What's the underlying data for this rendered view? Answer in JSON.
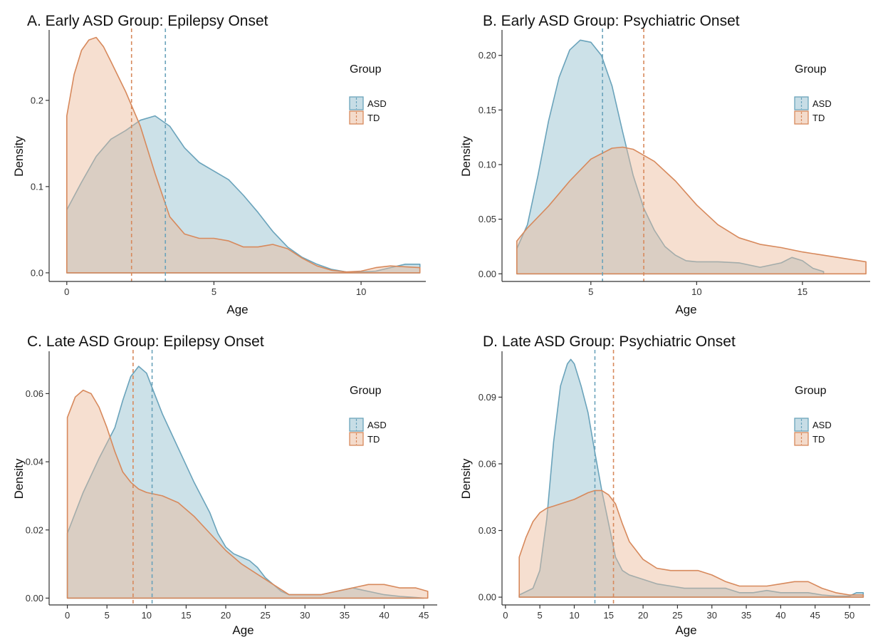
{
  "colors": {
    "asd_fill": "#8fbccd",
    "asd_line": "#6aa3bb",
    "td_fill": "#eab797",
    "td_line": "#d7895c",
    "axis": "#333333"
  },
  "chart_data": [
    {
      "type": "area",
      "panel": "A",
      "title": "A. Early ASD Group: Epilepsy Onset",
      "xlabel": "Age",
      "ylabel": "Density",
      "xlim": [
        -0.6,
        12.2
      ],
      "ylim": [
        -0.01,
        0.28
      ],
      "xticks": [
        0,
        5,
        10
      ],
      "yticks": [
        0.0,
        0.1,
        0.2
      ],
      "ytick_labels": [
        "0.0",
        "0.1",
        "0.2"
      ],
      "grid": false,
      "legend": {
        "title": "Group",
        "position": "right",
        "entries": [
          "ASD",
          "TD"
        ]
      },
      "series": [
        {
          "name": "ASD",
          "mean": 3.35,
          "x": [
            0,
            0.5,
            1,
            1.5,
            2,
            2.5,
            3,
            3.5,
            4,
            4.5,
            5,
            5.5,
            6,
            6.5,
            7,
            7.5,
            8,
            8.5,
            9,
            9.5,
            10,
            10.5,
            11,
            11.5,
            12
          ],
          "y": [
            0.073,
            0.105,
            0.135,
            0.155,
            0.165,
            0.177,
            0.182,
            0.17,
            0.145,
            0.128,
            0.118,
            0.108,
            0.09,
            0.07,
            0.048,
            0.03,
            0.018,
            0.01,
            0.004,
            0.001,
            0.001,
            0.002,
            0.006,
            0.01,
            0.01
          ]
        },
        {
          "name": "TD",
          "mean": 2.2,
          "x": [
            0,
            0.25,
            0.5,
            0.75,
            1,
            1.25,
            1.5,
            2,
            2.5,
            3,
            3.5,
            4,
            4.5,
            5,
            5.5,
            6,
            6.5,
            7,
            7.5,
            8,
            8.5,
            9,
            9.5,
            10,
            10.5,
            11,
            11.5,
            12
          ],
          "y": [
            0.182,
            0.23,
            0.258,
            0.27,
            0.273,
            0.262,
            0.245,
            0.21,
            0.17,
            0.115,
            0.065,
            0.045,
            0.04,
            0.04,
            0.037,
            0.03,
            0.03,
            0.033,
            0.028,
            0.017,
            0.008,
            0.003,
            0.001,
            0.002,
            0.006,
            0.008,
            0.007,
            0.006
          ]
        }
      ]
    },
    {
      "type": "area",
      "panel": "B",
      "title": "B. Early ASD Group: Psychiatric Onset",
      "xlabel": "Age",
      "ylabel": "Density",
      "xlim": [
        0.8,
        18.2
      ],
      "ylim": [
        -0.007,
        0.222
      ],
      "xticks": [
        5,
        10,
        15
      ],
      "yticks": [
        0.0,
        0.05,
        0.1,
        0.15,
        0.2
      ],
      "ytick_labels": [
        "0.00",
        "0.05",
        "0.10",
        "0.15",
        "0.20"
      ],
      "grid": false,
      "legend": {
        "title": "Group",
        "position": "right",
        "entries": [
          "ASD",
          "TD"
        ]
      },
      "series": [
        {
          "name": "ASD",
          "mean": 5.55,
          "x": [
            1.5,
            2,
            2.5,
            3,
            3.5,
            4,
            4.5,
            5,
            5.5,
            6,
            6.5,
            7,
            7.5,
            8,
            8.5,
            9,
            9.5,
            10,
            11,
            12,
            13,
            14,
            14.5,
            15,
            15.5,
            16
          ],
          "y": [
            0.023,
            0.045,
            0.09,
            0.14,
            0.18,
            0.205,
            0.214,
            0.212,
            0.2,
            0.172,
            0.13,
            0.09,
            0.06,
            0.04,
            0.025,
            0.017,
            0.012,
            0.011,
            0.011,
            0.01,
            0.006,
            0.01,
            0.015,
            0.012,
            0.005,
            0.002
          ]
        },
        {
          "name": "TD",
          "mean": 7.5,
          "x": [
            1.5,
            2,
            3,
            4,
            5,
            6,
            6.5,
            7,
            8,
            9,
            10,
            11,
            12,
            13,
            14,
            15,
            16,
            17,
            18
          ],
          "y": [
            0.03,
            0.042,
            0.062,
            0.085,
            0.105,
            0.115,
            0.116,
            0.114,
            0.103,
            0.085,
            0.063,
            0.045,
            0.033,
            0.027,
            0.024,
            0.02,
            0.017,
            0.014,
            0.011
          ]
        }
      ]
    },
    {
      "type": "area",
      "panel": "C",
      "title": "C. Late ASD Group: Epilepsy Onset",
      "xlabel": "Age",
      "ylabel": "Density",
      "xlim": [
        -2.3,
        46.7
      ],
      "ylim": [
        -0.002,
        0.072
      ],
      "xticks": [
        0,
        5,
        10,
        15,
        20,
        25,
        30,
        35,
        40,
        45
      ],
      "yticks": [
        0.0,
        0.02,
        0.04,
        0.06
      ],
      "ytick_labels": [
        "0.00",
        "0.02",
        "0.04",
        "0.06"
      ],
      "grid": false,
      "legend": {
        "title": "Group",
        "position": "right",
        "entries": [
          "ASD",
          "TD"
        ]
      },
      "series": [
        {
          "name": "ASD",
          "mean": 10.7,
          "x": [
            0,
            2,
            4,
            6,
            7,
            8,
            9,
            10,
            11,
            12,
            13,
            14,
            16,
            18,
            19,
            20,
            21,
            22,
            23,
            24,
            25,
            26,
            27,
            28,
            29,
            30,
            32,
            34,
            36,
            38,
            40,
            42,
            44,
            45
          ],
          "y": [
            0.019,
            0.031,
            0.041,
            0.05,
            0.058,
            0.065,
            0.068,
            0.066,
            0.06,
            0.054,
            0.049,
            0.044,
            0.034,
            0.025,
            0.019,
            0.015,
            0.013,
            0.012,
            0.011,
            0.009,
            0.006,
            0.004,
            0.002,
            0.001,
            0.001,
            0.001,
            0.001,
            0.002,
            0.003,
            0.002,
            0.001,
            0.0005,
            0.0002,
            0.0
          ]
        },
        {
          "name": "TD",
          "mean": 8.3,
          "x": [
            0,
            1,
            2,
            3,
            4,
            5,
            6,
            7,
            8,
            9,
            10,
            12,
            14,
            16,
            18,
            20,
            22,
            24,
            26,
            28,
            30,
            32,
            34,
            36,
            38,
            40,
            42,
            44,
            45.5
          ],
          "y": [
            0.053,
            0.059,
            0.061,
            0.06,
            0.056,
            0.05,
            0.043,
            0.037,
            0.034,
            0.032,
            0.031,
            0.03,
            0.028,
            0.024,
            0.019,
            0.014,
            0.01,
            0.007,
            0.004,
            0.001,
            0.001,
            0.001,
            0.002,
            0.003,
            0.004,
            0.004,
            0.003,
            0.003,
            0.002
          ]
        }
      ]
    },
    {
      "type": "area",
      "panel": "D",
      "title": "D. Late ASD Group: Psychiatric Onset",
      "xlabel": "Age",
      "ylabel": "Density",
      "xlim": [
        -0.5,
        53
      ],
      "ylim": [
        -0.0035,
        0.11
      ],
      "xticks": [
        0,
        5,
        10,
        15,
        20,
        25,
        30,
        35,
        40,
        45,
        50
      ],
      "yticks": [
        0.0,
        0.03,
        0.06,
        0.09
      ],
      "ytick_labels": [
        "0.00",
        "0.03",
        "0.06",
        "0.09"
      ],
      "grid": false,
      "legend": {
        "title": "Group",
        "position": "right",
        "entries": [
          "ASD",
          "TD"
        ]
      },
      "series": [
        {
          "name": "ASD",
          "mean": 13.0,
          "x": [
            2,
            4,
            5,
            6,
            7,
            8,
            9,
            9.5,
            10,
            11,
            12,
            13,
            14,
            15,
            16,
            17,
            18,
            19,
            20,
            22,
            24,
            26,
            28,
            30,
            32,
            34,
            36,
            38,
            40,
            42,
            44,
            46,
            48,
            50,
            51,
            52
          ],
          "y": [
            0.001,
            0.004,
            0.012,
            0.035,
            0.07,
            0.095,
            0.105,
            0.107,
            0.105,
            0.095,
            0.083,
            0.065,
            0.048,
            0.033,
            0.018,
            0.012,
            0.01,
            0.009,
            0.008,
            0.006,
            0.005,
            0.004,
            0.004,
            0.004,
            0.004,
            0.002,
            0.002,
            0.003,
            0.002,
            0.002,
            0.002,
            0.001,
            0.0005,
            0.0005,
            0.002,
            0.002
          ]
        },
        {
          "name": "TD",
          "mean": 15.7,
          "x": [
            2,
            3,
            4,
            5,
            6,
            7,
            8,
            10,
            12,
            13,
            14,
            15,
            16,
            17,
            18,
            20,
            22,
            24,
            26,
            28,
            30,
            32,
            34,
            36,
            38,
            40,
            42,
            43,
            44,
            46,
            48,
            50,
            52
          ],
          "y": [
            0.018,
            0.027,
            0.034,
            0.038,
            0.04,
            0.041,
            0.042,
            0.044,
            0.047,
            0.048,
            0.048,
            0.046,
            0.042,
            0.033,
            0.025,
            0.017,
            0.013,
            0.012,
            0.012,
            0.012,
            0.01,
            0.007,
            0.005,
            0.005,
            0.005,
            0.006,
            0.007,
            0.007,
            0.007,
            0.004,
            0.002,
            0.001,
            0.001
          ]
        }
      ]
    }
  ]
}
